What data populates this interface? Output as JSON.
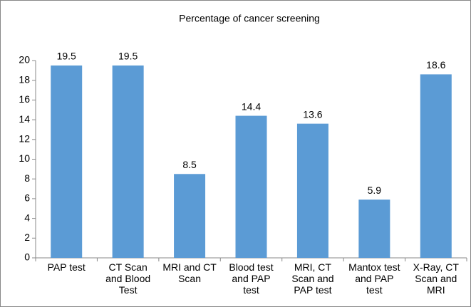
{
  "chart_data": {
    "type": "bar",
    "title": "Percentage of cancer screening",
    "categories": [
      "PAP test",
      "CT Scan and Blood Test",
      "MRI and CT Scan",
      "Blood test and PAP test",
      "MRI, CT Scan and PAP test",
      "Mantox test and PAP test",
      "X-Ray, CT Scan and MRI"
    ],
    "values": [
      19.5,
      19.5,
      8.5,
      14.4,
      13.6,
      5.9,
      18.6
    ],
    "color": "#5b9bd5",
    "ylim": [
      0,
      20
    ],
    "yticks": [
      0,
      2,
      4,
      6,
      8,
      10,
      12,
      14,
      16,
      18,
      20
    ],
    "grid": false
  }
}
